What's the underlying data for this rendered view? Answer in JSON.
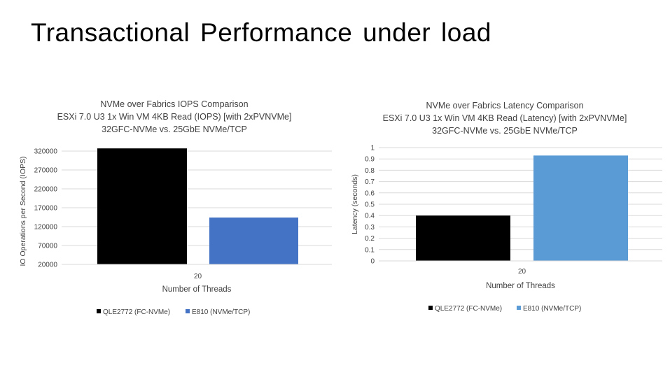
{
  "slide": {
    "title": "Transactional  Performance  under load"
  },
  "chart_data": [
    {
      "type": "bar",
      "title_lines": [
        "NVMe over Fabrics IOPS Comparison",
        "ESXi 7.0  U3  1x Win VM 4KB Read (IOPS) [with 2xPVNVMe]",
        "32GFC-NVMe vs. 25GbE  NVMe/TCP"
      ],
      "xlabel": "Number  of Threads",
      "ylabel": "IO Operations per Second (IOPS)",
      "categories": [
        "20"
      ],
      "yticks": [
        20000,
        70000,
        120000,
        170000,
        220000,
        270000,
        320000
      ],
      "ylim": [
        20000,
        331000
      ],
      "grid": true,
      "legend_position": "bottom",
      "series": [
        {
          "name": "QLE2772 (FC-NVMe)",
          "values": [
            327000
          ],
          "color": "#000000"
        },
        {
          "name": "E810 (NVMe/TCP)",
          "values": [
            144000
          ],
          "color": "#4472c4"
        }
      ]
    },
    {
      "type": "bar",
      "title_lines": [
        "NVMe over Fabrics Latency Comparison",
        "ESXi 7.0  U3  1x Win VM 4KB Read (Latency) [with  2xPVNVMe]",
        "32GFC-NVMe vs. 25GbE  NVMe/TCP"
      ],
      "xlabel": "Number  of Threads",
      "ylabel": "Latency  (seconds)",
      "categories": [
        "20"
      ],
      "yticks": [
        0,
        0.1,
        0.2,
        0.3,
        0.4,
        0.5,
        0.6,
        0.7,
        0.8,
        0.9,
        1
      ],
      "ylim": [
        0,
        1
      ],
      "grid": true,
      "legend_position": "bottom",
      "series": [
        {
          "name": "QLE2772 (FC-NVMe)",
          "values": [
            0.4
          ],
          "color": "#000000"
        },
        {
          "name": "E810 (NVMe/TCP)",
          "values": [
            0.93
          ],
          "color": "#5b9bd5"
        }
      ]
    }
  ]
}
